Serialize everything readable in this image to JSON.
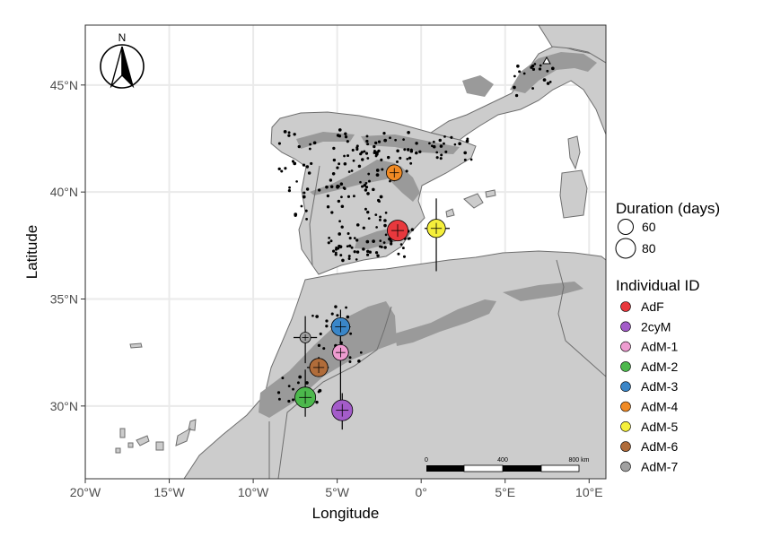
{
  "axes": {
    "xlabel": "Longitude",
    "ylabel": "Latitude",
    "x_ticks": [
      {
        "value": -20,
        "label": "20°W"
      },
      {
        "value": -15,
        "label": "15°W"
      },
      {
        "value": -10,
        "label": "10°W"
      },
      {
        "value": -5,
        "label": "5°W"
      },
      {
        "value": 0,
        "label": "0°"
      },
      {
        "value": 5,
        "label": "5°E"
      },
      {
        "value": 10,
        "label": "10°E"
      }
    ],
    "y_ticks": [
      {
        "value": 30,
        "label": "30°N"
      },
      {
        "value": 35,
        "label": "35°N"
      },
      {
        "value": 40,
        "label": "40°N"
      },
      {
        "value": 45,
        "label": "45°N"
      }
    ],
    "xlim": [
      -20,
      11
    ],
    "ylim": [
      26.6,
      47.8
    ]
  },
  "north_arrow": {
    "label": "N"
  },
  "scale_bar": {
    "labels": [
      "0",
      "400",
      "800 km"
    ]
  },
  "legend": {
    "duration": {
      "title": "Duration (days)",
      "items": [
        "60",
        "80"
      ]
    },
    "individual": {
      "title": "Individual ID"
    }
  },
  "colors": {
    "land": "#cccccc",
    "highland": "#9a9a9a",
    "sea": "#ffffff",
    "grid": "#eaeaea"
  },
  "chart_data": {
    "type": "scatter",
    "xlabel": "Longitude",
    "ylabel": "Latitude",
    "size_variable": "Duration (days)",
    "series": [
      {
        "name": "AdF",
        "color": "#e8383d",
        "lon": -1.4,
        "lat": 38.2,
        "duration": 80,
        "lon_err": [
          -1.8,
          -1.0
        ],
        "lat_err": [
          37.8,
          38.6
        ]
      },
      {
        "name": "2cyM",
        "color": "#a35cc9",
        "lon": -4.7,
        "lat": 29.8,
        "duration": 80,
        "lon_err": [
          -5.0,
          -4.4
        ],
        "lat_err": [
          28.9,
          30.6
        ]
      },
      {
        "name": "AdM-1",
        "color": "#ee9cd0",
        "lon": -4.8,
        "lat": 32.5,
        "duration": 60,
        "lon_err": [
          -5.2,
          -4.3
        ],
        "lat_err": [
          29.6,
          33.5
        ]
      },
      {
        "name": "AdM-2",
        "color": "#4cb84c",
        "lon": -6.9,
        "lat": 30.4,
        "duration": 80,
        "lon_err": [
          -7.2,
          -6.6
        ],
        "lat_err": [
          29.5,
          31.7
        ]
      },
      {
        "name": "AdM-3",
        "color": "#3a86c8",
        "lon": -4.8,
        "lat": 33.7,
        "duration": 70,
        "lon_err": [
          -5.4,
          -4.2
        ],
        "lat_err": [
          32.5,
          34.5
        ]
      },
      {
        "name": "AdM-4",
        "color": "#f08a24",
        "lon": -1.6,
        "lat": 40.9,
        "duration": 60,
        "lon_err": [
          -1.8,
          -1.3
        ],
        "lat_err": [
          40.5,
          41.2
        ]
      },
      {
        "name": "AdM-5",
        "color": "#f5ef3b",
        "lon": 0.9,
        "lat": 38.3,
        "duration": 70,
        "lon_err": [
          0.2,
          1.7
        ],
        "lat_err": [
          36.3,
          39.7
        ]
      },
      {
        "name": "AdM-6",
        "color": "#b06c3a",
        "lon": -6.1,
        "lat": 31.8,
        "duration": 70,
        "lon_err": [
          -6.8,
          -5.5
        ],
        "lat_err": [
          31.4,
          32.3
        ]
      },
      {
        "name": "AdM-7",
        "color": "#a0a0a0",
        "lon": -6.9,
        "lat": 33.2,
        "duration": 40,
        "lon_err": [
          -7.6,
          -6.2
        ],
        "lat_err": [
          32.0,
          34.2
        ]
      }
    ]
  }
}
